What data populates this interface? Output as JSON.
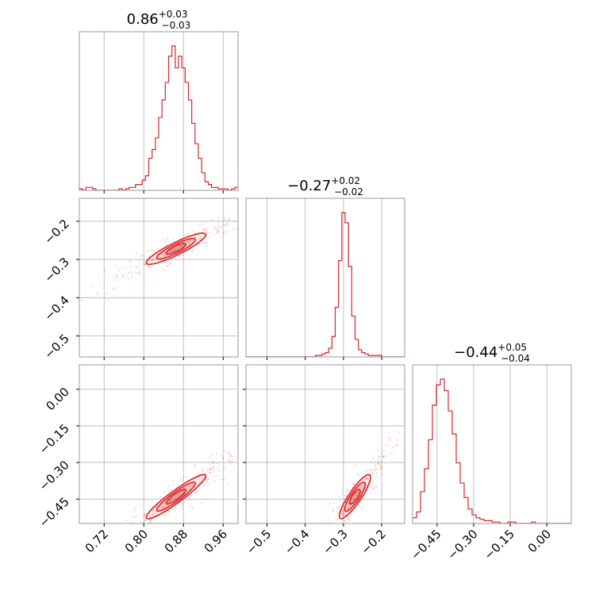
{
  "chart_data": {
    "type": "corner",
    "color": "#d62728",
    "params": [
      {
        "median": "0.86",
        "plus": "+0.03",
        "minus": "−0.03",
        "range": [
          0.67,
          0.99
        ],
        "ticks": [
          0.72,
          0.8,
          0.88,
          0.96
        ],
        "tick_labels": [
          "0.72",
          "0.80",
          "0.88",
          "0.96"
        ]
      },
      {
        "median": "−0.27",
        "plus": "+0.02",
        "minus": "−0.02",
        "range": [
          -0.555,
          -0.14
        ],
        "ticks": [
          -0.5,
          -0.4,
          -0.3,
          -0.2
        ],
        "tick_labels": [
          "−0.5",
          "−0.4",
          "−0.3",
          "−0.2"
        ]
      },
      {
        "median": "−0.44",
        "plus": "+0.05",
        "minus": "−0.04",
        "range": [
          -0.55,
          0.1
        ],
        "ticks": [
          -0.45,
          -0.3,
          -0.15,
          0.0
        ],
        "tick_labels": [
          "−0.45",
          "−0.30",
          "−0.15",
          "0.00"
        ]
      }
    ],
    "histograms": [
      {
        "edges": [
          0.67,
          0.99
        ],
        "counts": [
          1,
          0,
          2,
          2,
          1,
          0,
          0,
          0,
          0,
          0,
          0,
          0,
          1,
          0,
          1,
          2,
          2,
          4,
          4,
          7,
          10,
          22,
          28,
          36,
          50,
          62,
          74,
          92,
          99,
          84,
          92,
          84,
          74,
          62,
          46,
          32,
          22,
          12,
          6,
          4,
          2,
          2,
          1,
          1,
          1,
          0,
          1,
          2
        ]
      },
      {
        "edges": [
          -0.555,
          -0.14
        ],
        "counts": [
          0,
          0,
          0,
          0,
          0,
          0,
          0,
          0,
          0,
          0,
          0,
          0,
          0,
          0,
          0,
          0,
          0,
          0,
          0,
          0,
          0,
          1,
          1,
          2,
          3,
          6,
          14,
          34,
          66,
          99,
          92,
          62,
          28,
          12,
          5,
          3,
          2,
          1,
          1,
          1,
          1,
          0,
          0,
          0,
          0,
          0,
          0,
          0
        ]
      },
      {
        "edges": [
          -0.55,
          0.1
        ],
        "counts": [
          4,
          8,
          22,
          38,
          58,
          82,
          96,
          100,
          92,
          78,
          62,
          42,
          28,
          18,
          10,
          6,
          4,
          3,
          2,
          2,
          1,
          1,
          0,
          0,
          1,
          1,
          0,
          0,
          0,
          0,
          1,
          0,
          0,
          0,
          0,
          0,
          0,
          0,
          0,
          0
        ]
      }
    ],
    "scatter": [
      {
        "pair": [
          1,
          0
        ],
        "mean": [
          0.865,
          -0.272
        ],
        "sd": [
          0.03,
          0.02
        ],
        "corr": 0.93
      },
      {
        "pair": [
          2,
          0
        ],
        "mean": [
          0.865,
          -0.44
        ],
        "sd": [
          0.03,
          0.045
        ],
        "corr": 0.96
      },
      {
        "pair": [
          2,
          1
        ],
        "mean": [
          -0.27,
          -0.44
        ],
        "sd": [
          0.02,
          0.045
        ],
        "corr": 0.92
      }
    ]
  }
}
